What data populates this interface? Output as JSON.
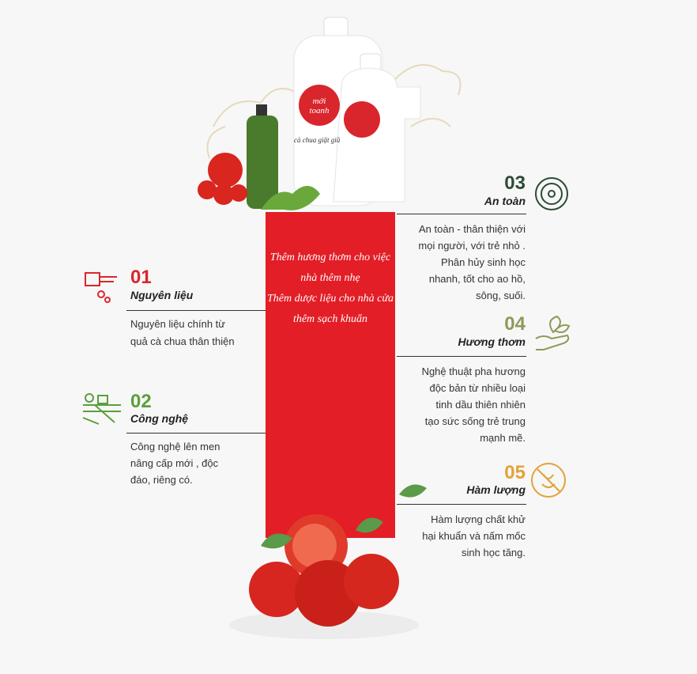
{
  "product": {
    "label_top": "mới toanh",
    "label_bottom": "cà chua giặt giũ"
  },
  "banner": {
    "lines": [
      "Thêm hương thơm cho việc",
      "nhà thêm nhẹ",
      "Thêm dược liệu cho nhà cửa",
      "thêm sạch khuẩn"
    ]
  },
  "features": [
    {
      "number": "01",
      "title": "Nguyên liệu",
      "color": "#d9262c",
      "lines": [
        "Nguyên liệu chính từ",
        "quả cà chua thân thiện"
      ]
    },
    {
      "number": "02",
      "title": "Công nghệ",
      "color": "#5b9f3b",
      "lines": [
        "Công nghệ lên men",
        "nâng cấp mới , độc",
        "đáo, riêng có."
      ]
    },
    {
      "number": "03",
      "title": "An toàn",
      "color": "#2d4b36",
      "lines": [
        "An toàn - thân thiện với",
        "mọi người, với trẻ nhỏ .",
        "Phân hủy sinh học",
        "nhanh, tốt cho ao hồ,",
        "sông, suối."
      ]
    },
    {
      "number": "04",
      "title": "Hương thơm",
      "color": "#8c9a58",
      "lines": [
        "Nghệ thuật pha hương",
        "độc bản từ nhiều loại",
        "tinh dầu thiên nhiên",
        "tạo sức sống trẻ trung",
        "mạnh mẽ."
      ]
    },
    {
      "number": "05",
      "title": "Hàm lượng",
      "color": "#e2a23a",
      "lines": [
        "Hàm lượng chất khử",
        "hại khuẩn và nấm mốc",
        "sinh học tăng."
      ]
    }
  ]
}
